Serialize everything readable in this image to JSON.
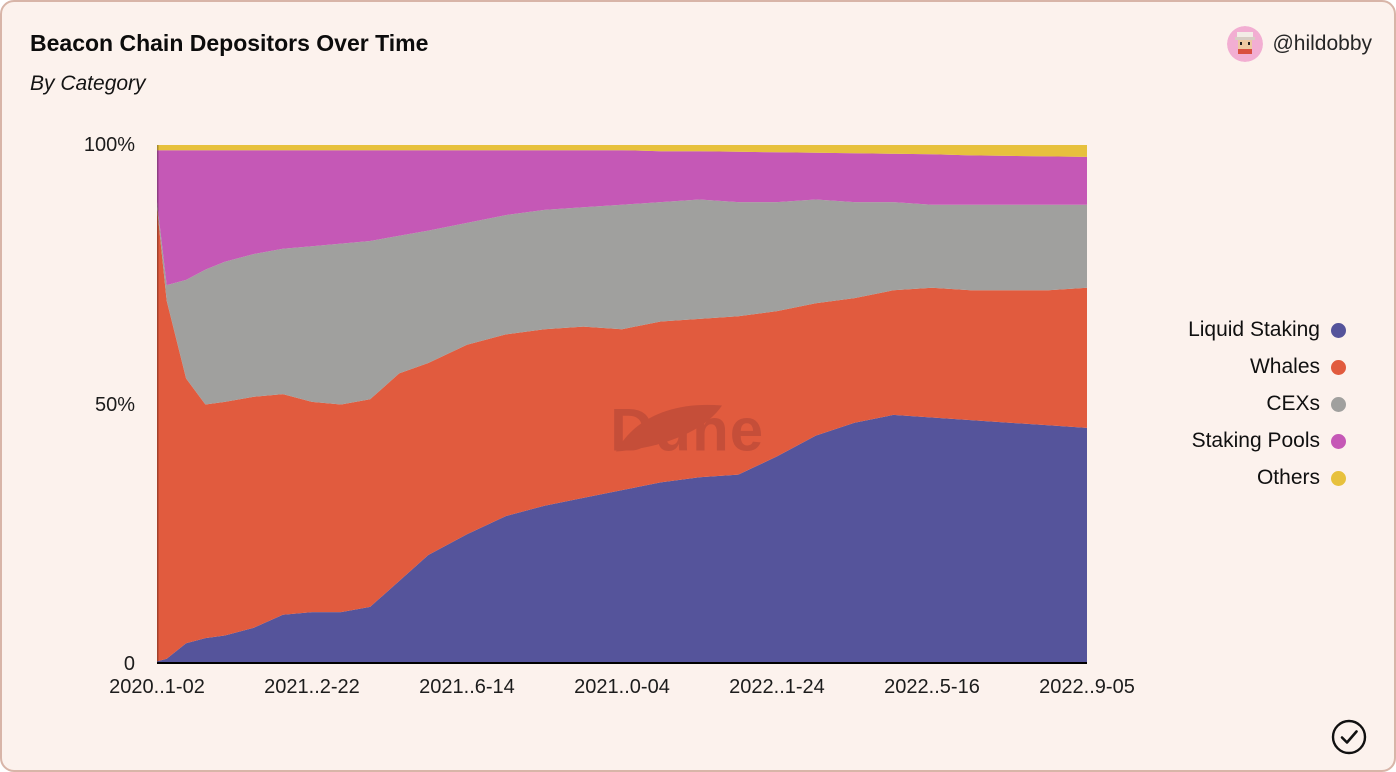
{
  "card": {
    "title": "Beacon Chain Depositors Over Time",
    "subtitle": "By Category",
    "author": "@hildobby",
    "background": "#fcf2ed",
    "border_color": "#d8b5a8"
  },
  "watermark": {
    "text": "Dune",
    "color": "#7c2d2d"
  },
  "icons": {
    "avatar": "pixel-art-avatar",
    "check": "checkmark-circle"
  },
  "chart_data": {
    "type": "area",
    "stacked": true,
    "percent": true,
    "title": "Beacon Chain Depositors Over Time",
    "subtitle": "By Category",
    "legend_position": "right",
    "grid": false,
    "ylim": [
      0,
      100
    ],
    "y_ticks": [
      {
        "label": "100%",
        "value": 100
      },
      {
        "label": "50%",
        "value": 50
      },
      {
        "label": "0",
        "value": 0
      }
    ],
    "x_tick_labels": [
      "2020..1-02",
      "2021..2-22",
      "2021..6-14",
      "2021..0-04",
      "2022..1-24",
      "2022..5-16",
      "2022..9-05"
    ],
    "x": [
      "2020-11-02",
      "2020-11-09",
      "2020-11-23",
      "2020-12-07",
      "2020-12-21",
      "2021-01-11",
      "2021-02-01",
      "2021-02-22",
      "2021-03-15",
      "2021-04-05",
      "2021-04-26",
      "2021-05-17",
      "2021-06-14",
      "2021-07-12",
      "2021-08-09",
      "2021-09-06",
      "2021-10-04",
      "2021-11-01",
      "2021-11-29",
      "2021-12-27",
      "2022-01-24",
      "2022-02-21",
      "2022-03-21",
      "2022-04-18",
      "2022-05-16",
      "2022-06-13",
      "2022-07-11",
      "2022-08-08",
      "2022-09-05"
    ],
    "series": [
      {
        "name": "Liquid Staking",
        "color": "#55549b",
        "values": [
          0.5,
          1,
          4,
          5,
          5.5,
          7,
          9.5,
          10,
          10,
          11,
          16,
          21,
          25,
          28.5,
          30.5,
          32,
          33.5,
          35,
          36,
          36.5,
          40,
          44,
          46.5,
          48,
          47.5,
          47,
          46.5,
          46,
          45.5
        ]
      },
      {
        "name": "Whales",
        "color": "#e15b3e",
        "values": [
          87.5,
          69,
          51,
          45,
          45,
          44.5,
          42.5,
          40.5,
          40,
          40,
          40,
          37,
          36.5,
          35,
          34,
          33,
          31,
          31,
          30.5,
          30.5,
          28,
          25.5,
          24,
          24,
          25,
          25,
          25.5,
          26,
          27
        ]
      },
      {
        "name": "CEXs",
        "color": "#a0a09e",
        "values": [
          1,
          3,
          19,
          26,
          27,
          27.5,
          28,
          30,
          31,
          30.5,
          26.5,
          25.5,
          23.5,
          23,
          23,
          23,
          24,
          23,
          23,
          22,
          21,
          20,
          18.5,
          17,
          16,
          16.5,
          16.5,
          16.5,
          16
        ]
      },
      {
        "name": "Staking Pools",
        "color": "#c558b6",
        "values": [
          10,
          26,
          25,
          23,
          21.5,
          20,
          19,
          18.5,
          18,
          17.5,
          16.5,
          15.5,
          14,
          12.5,
          11.5,
          11,
          10.5,
          9.8,
          9.3,
          9.7,
          9.6,
          9,
          9.4,
          9.3,
          9.7,
          9.5,
          9.4,
          9.3,
          9.2
        ]
      },
      {
        "name": "Others",
        "color": "#e7c13d",
        "values": [
          1,
          1,
          1,
          1,
          1,
          1,
          1,
          1,
          1,
          1,
          1,
          1,
          1,
          1,
          1,
          1,
          1,
          1.2,
          1.2,
          1.3,
          1.4,
          1.5,
          1.6,
          1.7,
          1.8,
          2,
          2.1,
          2.2,
          2.3
        ]
      }
    ]
  }
}
